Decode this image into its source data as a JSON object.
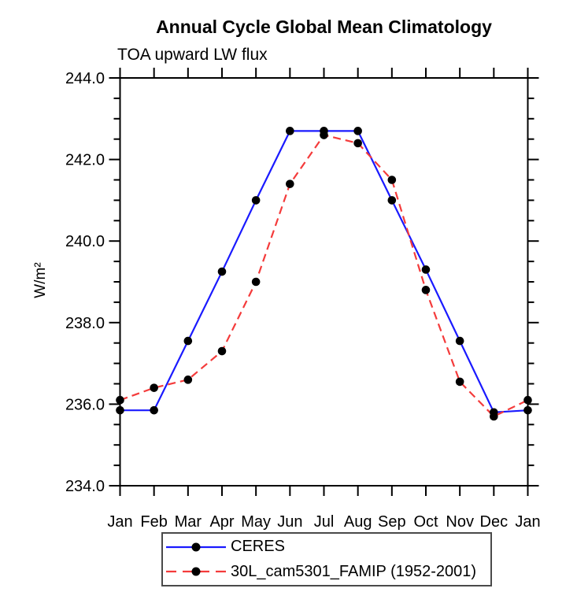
{
  "accent_colors": {
    "axis": "#000000",
    "marker": "#000000",
    "ceres_blue": "#1a1aff",
    "famip_red": "#f43b3b"
  },
  "chart_data": {
    "type": "line",
    "title": "Annual Cycle Global Mean Climatology",
    "subtitle": "TOA upward LW flux",
    "xlabel": "",
    "ylabel": "W/m²",
    "x": [
      "Jan",
      "Feb",
      "Mar",
      "Apr",
      "May",
      "Jun",
      "Jul",
      "Aug",
      "Sep",
      "Oct",
      "Nov",
      "Dec",
      "Jan"
    ],
    "ylim": [
      234.0,
      244.0
    ],
    "ytick_major": 2.0,
    "ytick_minor": 0.5,
    "ytick_label_format": "one_decimal",
    "grid": false,
    "legend_position": "bottom",
    "series": [
      {
        "name": "CERES",
        "color": "#1a1aff",
        "style": "solid",
        "marker": "circle",
        "marker_color": "#000000",
        "values": [
          235.85,
          235.85,
          237.55,
          239.25,
          241.0,
          242.7,
          242.7,
          242.7,
          241.0,
          239.3,
          237.55,
          235.8,
          235.85
        ]
      },
      {
        "name": "30L_cam5301_FAMIP (1952-2001)",
        "color": "#f43b3b",
        "style": "dashed",
        "marker": "circle",
        "marker_color": "#000000",
        "values": [
          236.1,
          236.4,
          236.6,
          237.3,
          239.0,
          241.4,
          242.6,
          242.4,
          241.5,
          238.8,
          236.55,
          235.7,
          236.1
        ]
      }
    ]
  }
}
